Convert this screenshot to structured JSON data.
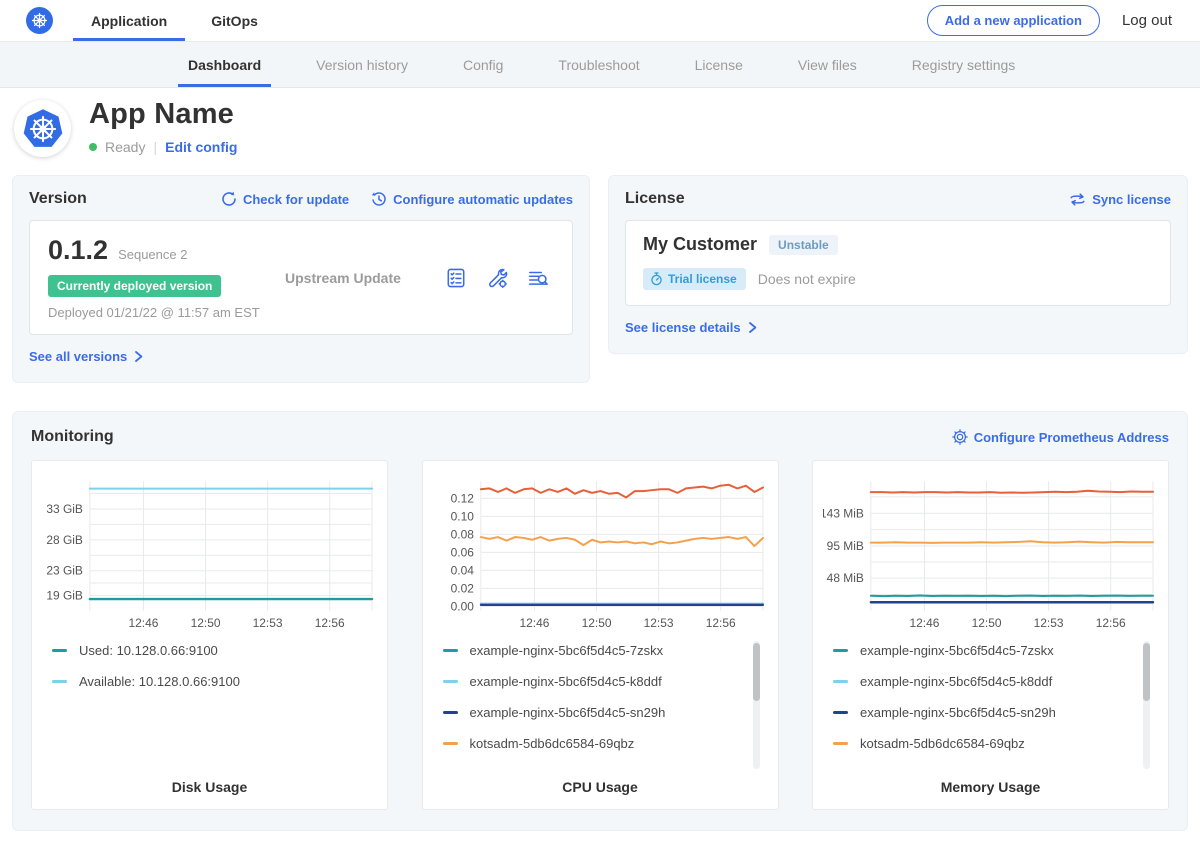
{
  "colors": {
    "accent_blue": "#3b6ce8",
    "k8s_blue": "#326ce5",
    "deployed_badge_green": "#3ec28f",
    "ready_dot_green": "#44bb66",
    "muted_text": "#9b9b9b",
    "panel_bg": "#f4f7f9",
    "series_teal": "#1f9ba3",
    "series_light_blue": "#7fd0ec",
    "series_navy": "#24428c",
    "series_orange": "#f5a14c",
    "series_red": "#e85f39"
  },
  "topnav": {
    "tabs": [
      {
        "label": "Application"
      },
      {
        "label": "GitOps"
      }
    ],
    "add_application": "Add a new application",
    "logout": "Log out"
  },
  "subnav": {
    "tabs": [
      "Dashboard",
      "Version history",
      "Config",
      "Troubleshoot",
      "License",
      "View files",
      "Registry settings"
    ],
    "active": "Dashboard"
  },
  "app": {
    "title": "App Name",
    "status": "Ready",
    "edit_config": "Edit config"
  },
  "version_card": {
    "title": "Version",
    "check_for_update": "Check for update",
    "configure_automatic_updates": "Configure automatic updates",
    "version_number": "0.1.2",
    "sequence": "Sequence 2",
    "deployed_badge": "Currently deployed version",
    "deployed_at": "Deployed 01/21/22 @ 11:57 am EST",
    "source": "Upstream Update",
    "see_all_versions": "See all versions"
  },
  "license_card": {
    "title": "License",
    "sync_license": "Sync license",
    "customer": "My Customer",
    "channel": "Unstable",
    "type_badge": "Trial license",
    "expiry": "Does not expire",
    "see_details": "See license details"
  },
  "monitoring": {
    "title": "Monitoring",
    "configure_prometheus": "Configure Prometheus Address"
  },
  "chart_data": [
    {
      "type": "line",
      "title": "Disk Usage",
      "ylim": [
        16.5,
        37.5
      ],
      "y_ticks": [
        {
          "v": 19,
          "label": "19 GiB"
        },
        {
          "v": 23,
          "label": "23 GiB"
        },
        {
          "v": 28,
          "label": "28 GiB"
        },
        {
          "v": 33,
          "label": "33 GiB"
        }
      ],
      "y_grid": [
        19,
        21,
        23,
        25.5,
        28,
        30.5,
        33,
        35.5
      ],
      "x_ticks": [
        {
          "f": 0.19,
          "label": "12:46"
        },
        {
          "f": 0.41,
          "label": "12:50"
        },
        {
          "f": 0.63,
          "label": "12:53"
        },
        {
          "f": 0.85,
          "label": "12:56"
        }
      ],
      "x_grid": [
        0,
        0.19,
        0.41,
        0.63,
        0.85,
        1
      ],
      "series": [
        {
          "name": "Available: 10.128.0.66:9100",
          "color": "#7fd0ec",
          "width": 2,
          "values": [
            36.3,
            36.3
          ]
        },
        {
          "name": "Used: 10.128.0.66:9100",
          "color": "#1f9ba3",
          "width": 2.4,
          "values": [
            18.4,
            18.4
          ]
        }
      ],
      "legend": [
        {
          "label": "Used: 10.128.0.66:9100",
          "color": "#1f9ba3"
        },
        {
          "label": "Available: 10.128.0.66:9100",
          "color": "#7fd0ec"
        }
      ],
      "scrollbar": false
    },
    {
      "type": "line",
      "title": "CPU Usage",
      "ylim": [
        -0.005,
        0.139
      ],
      "y_ticks": [
        {
          "v": 0,
          "label": "0.00"
        },
        {
          "v": 0.02,
          "label": "0.02"
        },
        {
          "v": 0.04,
          "label": "0.04"
        },
        {
          "v": 0.06,
          "label": "0.06"
        },
        {
          "v": 0.08,
          "label": "0.08"
        },
        {
          "v": 0.1,
          "label": "0.10"
        },
        {
          "v": 0.12,
          "label": "0.12"
        }
      ],
      "y_grid": [
        0,
        0.02,
        0.04,
        0.06,
        0.08,
        0.1,
        0.12
      ],
      "x_ticks": [
        {
          "f": 0.19,
          "label": "12:46"
        },
        {
          "f": 0.41,
          "label": "12:50"
        },
        {
          "f": 0.63,
          "label": "12:53"
        },
        {
          "f": 0.85,
          "label": "12:56"
        }
      ],
      "x_grid": [
        0,
        0.19,
        0.41,
        0.63,
        0.85,
        1
      ],
      "series": [
        {
          "name": "",
          "color": "#e85f39",
          "width": 2,
          "values": [
            0.13,
            0.131,
            0.127,
            0.131,
            0.126,
            0.13,
            0.131,
            0.126,
            0.13,
            0.127,
            0.131,
            0.125,
            0.129,
            0.126,
            0.128,
            0.125,
            0.126,
            0.121,
            0.128,
            0.128,
            0.129,
            0.13,
            0.13,
            0.126,
            0.131,
            0.132,
            0.133,
            0.131,
            0.134,
            0.135,
            0.131,
            0.134,
            0.127,
            0.132
          ]
        },
        {
          "name": "kotsadm-5db6dc6584-69qbz",
          "color": "#f5a14c",
          "width": 2,
          "values": [
            0.077,
            0.075,
            0.077,
            0.073,
            0.077,
            0.076,
            0.074,
            0.077,
            0.073,
            0.075,
            0.076,
            0.074,
            0.068,
            0.074,
            0.071,
            0.072,
            0.071,
            0.072,
            0.07,
            0.071,
            0.069,
            0.072,
            0.07,
            0.071,
            0.073,
            0.075,
            0.076,
            0.075,
            0.076,
            0.077,
            0.075,
            0.077,
            0.067,
            0.076
          ]
        },
        {
          "name": "example-nginx-5bc6f5d4c5-k8ddf",
          "color": "#7fd0ec",
          "width": 2,
          "values": [
            0.003,
            0.003
          ]
        },
        {
          "name": "example-nginx-5bc6f5d4c5-7zskx",
          "color": "#1f9ba3",
          "width": 2,
          "values": [
            0.002,
            0.002
          ]
        },
        {
          "name": "example-nginx-5bc6f5d4c5-sn29h",
          "color": "#24428c",
          "width": 2,
          "values": [
            0.0015,
            0.0015
          ]
        }
      ],
      "legend": [
        {
          "label": "example-nginx-5bc6f5d4c5-7zskx",
          "color": "#1f9ba3"
        },
        {
          "label": "example-nginx-5bc6f5d4c5-k8ddf",
          "color": "#7fd0ec"
        },
        {
          "label": "example-nginx-5bc6f5d4c5-sn29h",
          "color": "#24428c"
        },
        {
          "label": "kotsadm-5db6dc6584-69qbz",
          "color": "#f5a14c"
        }
      ],
      "scrollbar": true
    },
    {
      "type": "line",
      "title": "Memory Usage",
      "ylim": [
        0,
        190
      ],
      "y_ticks": [
        {
          "v": 48,
          "label": "48 MiB"
        },
        {
          "v": 95,
          "label": "95 MiB"
        },
        {
          "v": 143,
          "label": "143 MiB"
        }
      ],
      "y_grid": [
        24,
        48,
        71.5,
        95,
        119,
        143,
        167
      ],
      "x_ticks": [
        {
          "f": 0.19,
          "label": "12:46"
        },
        {
          "f": 0.41,
          "label": "12:50"
        },
        {
          "f": 0.63,
          "label": "12:53"
        },
        {
          "f": 0.85,
          "label": "12:56"
        }
      ],
      "x_grid": [
        0,
        0.19,
        0.41,
        0.63,
        0.85,
        1
      ],
      "series": [
        {
          "name": "",
          "color": "#e85f39",
          "width": 2,
          "values": [
            174,
            174,
            173.5,
            174,
            173.5,
            174,
            174,
            173.5,
            174,
            173.5,
            173.5,
            174,
            173,
            173.5,
            173,
            173.5,
            174,
            174.5,
            174,
            174.5,
            176,
            175,
            174.5,
            174,
            175,
            174.5,
            174.5
          ]
        },
        {
          "name": "kotsadm-5db6dc6584-69qbz",
          "color": "#f5a14c",
          "width": 2,
          "values": [
            100,
            100,
            100.5,
            100,
            100,
            99.5,
            100,
            100,
            100,
            100.5,
            100,
            100.5,
            101,
            102,
            100.5,
            100,
            100.5,
            101.5,
            100.5,
            100,
            101,
            100.5,
            100.5,
            100.5
          ]
        },
        {
          "name": "example-nginx-5bc6f5d4c5-7zskx",
          "color": "#1f9ba3",
          "width": 2,
          "values": [
            22,
            21.5,
            22,
            21.8,
            22.5,
            21.8,
            22,
            21.9,
            22,
            21.8,
            22,
            21.7,
            22,
            22.4,
            21.8,
            22,
            21.9,
            22.2,
            21.8,
            22,
            22.3,
            21.9,
            22,
            22
          ]
        },
        {
          "name": "example-nginx-5bc6f5d4c5-sn29h",
          "color": "#24428c",
          "width": 2.4,
          "values": [
            12.5,
            12.5
          ]
        }
      ],
      "legend": [
        {
          "label": "example-nginx-5bc6f5d4c5-7zskx",
          "color": "#1f9ba3"
        },
        {
          "label": "example-nginx-5bc6f5d4c5-k8ddf",
          "color": "#7fd0ec"
        },
        {
          "label": "example-nginx-5bc6f5d4c5-sn29h",
          "color": "#24428c"
        },
        {
          "label": "kotsadm-5db6dc6584-69qbz",
          "color": "#f5a14c"
        }
      ],
      "scrollbar": true
    }
  ]
}
